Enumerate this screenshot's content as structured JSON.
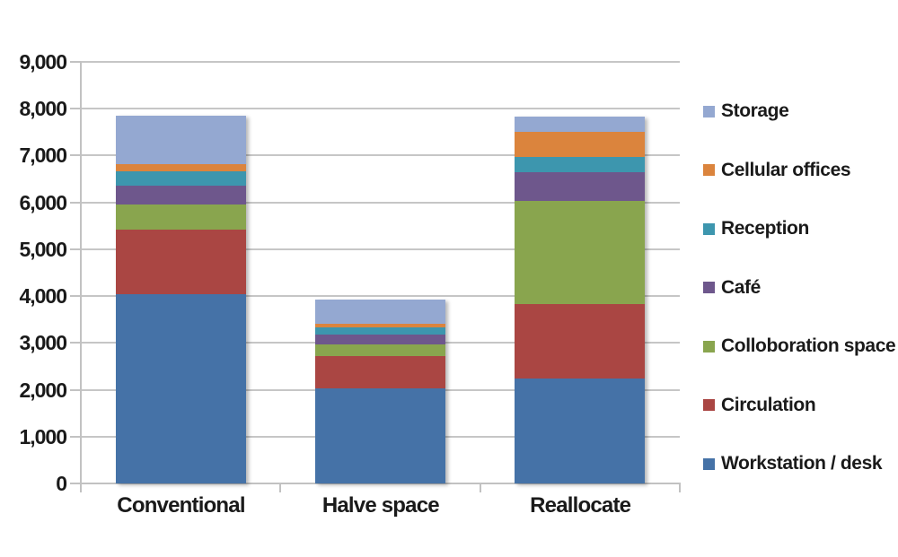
{
  "chart_data": {
    "type": "bar",
    "stacked": true,
    "title": "",
    "xlabel": "",
    "ylabel": "",
    "categories": [
      "Conventional",
      "Halve space",
      "Reallocate"
    ],
    "series": [
      {
        "name": "Workstation / desk",
        "color": "#4572A7",
        "values": [
          4050,
          2025,
          2250
        ]
      },
      {
        "name": "Circulation",
        "color": "#AA4643",
        "values": [
          1375,
          690,
          1585
        ]
      },
      {
        "name": "Colloboration space",
        "color": "#89A54E",
        "values": [
          525,
          260,
          2190
        ]
      },
      {
        "name": "Café",
        "color": "#6E578C",
        "values": [
          400,
          200,
          625
        ]
      },
      {
        "name": "Reception",
        "color": "#3D96AE",
        "values": [
          315,
          160,
          315
        ]
      },
      {
        "name": "Cellular offices",
        "color": "#DB843D",
        "values": [
          155,
          80,
          540
        ]
      },
      {
        "name": "Storage",
        "color": "#94A8D1",
        "values": [
          1025,
          515,
          320
        ]
      }
    ],
    "ylim": [
      0,
      9000
    ],
    "ytick_step": 1000,
    "ytick_labels": [
      "0",
      "1,000",
      "2,000",
      "3,000",
      "4,000",
      "5,000",
      "6,000",
      "7,000",
      "8,000",
      "9,000"
    ],
    "grid": true,
    "legend_position": "right",
    "legend_order_top_to_bottom": [
      "Storage",
      "Cellular offices",
      "Reception",
      "Café",
      "Colloboration space",
      "Circulation",
      "Workstation / desk"
    ]
  },
  "colors": {
    "background": "#FFFFFF",
    "gridline": "#C6C6C6",
    "axis": "#C2C2C2",
    "text": "#1A1A1A"
  }
}
